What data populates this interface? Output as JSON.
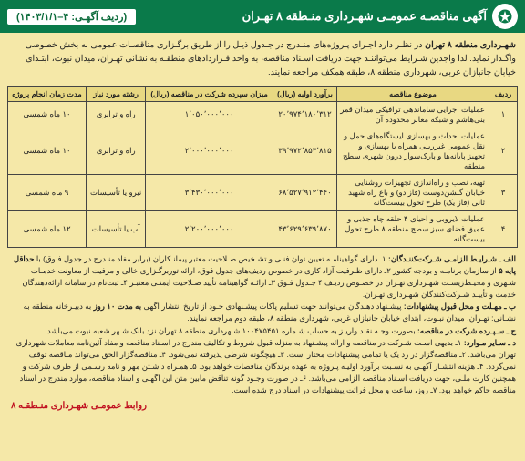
{
  "header": {
    "title": "آگهی مناقصـه عمومـی شهـرداری منـطقه ۸ تهـران",
    "ref": "(ردیف آگهـی: ۴–۱۴۰۳/۱/۱)",
    "logo_label": "شهرداری"
  },
  "intro": {
    "lead": "شهـرداری منطقه ۸ تهران",
    "body": " در نظـر دارد اجـرای پـروژه‌های منـدرج در جـدول ذیـل را از طریق برگـزاری مناقصـات عمومی به بخش خصوصی واگـذار نماید. لذا واجدین شـرایط می‌تواننـد جهت دریافت اسـناد مناقصه، به واحد قـراردادهای منطقـه به نشانی تهـران، میدان نبوت، ابتـدای خیابان جانبازان غربی، شهرداری منطقه ۸، طبقه همکف مراجعه نمایند."
  },
  "table": {
    "columns": [
      "ردیف",
      "موضوع مناقصه",
      "برآورد اولیه (ریال)",
      "میزان سپرده شرکت در مناقصه (ریال)",
      "رشته مورد نیاز",
      "مدت زمان انجام پروژه"
    ],
    "rows": [
      {
        "n": "۱",
        "subject": "عملیات اجرایی ساماندهی ترافیکی میدان قمر بنی‌هاشم و شبکه معابر محدوده آن",
        "estimate": "۲۰٬۹۷۴٬۱۸۰٬۳۱۲",
        "deposit": "۱٬۰۵۰٬۰۰۰٬۰۰۰",
        "field": "راه و ترابری",
        "duration": "۱۰ ماه شمسی"
      },
      {
        "n": "۲",
        "subject": "عملیات احداث و بهسازی ایستگاه‌های حمل و نقل عمومی غیرریلی همراه با بهسازی و تجهیز پایانه‌ها و پارک‌سوار درون شهری سطح منطقه",
        "estimate": "۳۹٬۹۷۲٬۸۵۳٬۸۱۵",
        "deposit": "۲٬۰۰۰٬۰۰۰٬۰۰۰",
        "field": "راه و ترابری",
        "duration": "۱۰ ماه شمسی"
      },
      {
        "n": "۳",
        "subject": "تهیه، نصب و راه‌اندازی تجهیزات روشنایی خیابان گلشن‌دوست (فاز دو) و باغ راه شهید ثانی (فاز یک) طرح تحول بیست‌گانه",
        "estimate": "۶۸٬۵۲۷٬۹۱۲٬۴۴۰",
        "deposit": "۳٬۴۳۰٬۰۰۰٬۰۰۰",
        "field": "نیرو یا تأسیسات",
        "duration": "۹ ماه شمسی"
      },
      {
        "n": "۴",
        "subject": "عملیات لایروبی و احیای ۴ حلقه چاه جذبی و عمیق فضای سبز سطح منطقه ۸ طرح تحول بیست‌گانه",
        "estimate": "۴۳٬۶۲۹٬۶۳۹٬۸۷۰",
        "deposit": "۲٬۲۰۰٬۰۰۰٬۰۰۰",
        "field": "آب یا تأسیسات",
        "duration": "۱۲ ماه شمسی"
      }
    ]
  },
  "notes": {
    "a_title": "الف ـ شـرایـط الزامـی شـرکت‌کننـدگان:",
    "a_body": " ۱ـ دارای گواهینامـه تعیین توان فنـی و تشـخیص صـلاحیت معتبر پیمانـکاران (برابر مفاد منـدرج در جدول فـوق) با ",
    "a_rank": "حداقل پایه ۵",
    "a_body2": " از سازمان برنامـه و بودجه کشور ۲ـ دارای ظـرفیت آزاد کاری در خصوص ردیف‌های جدول فوق، ارائه توربرگـزاری خالی و مرفیت از معاونت خدمـات شـهری و محیـط‌زیسـت شهـرداری تهـران در خصـوص ردیـف ۴ جـدول فـوق ۳ـ ارائـه گواهینامه تأیید صـلاحیت ایمنـی معتبـر ۴ـ ثبت‌نام در سامانه ارائه‌دهندگان خدمت و تأییـد شـرکت‌کنندگان شهـرداری تهـران.",
    "b_title": "ب ـ مهـلت و محل قبول پیشنهادات:",
    "b_body": " پیشـنهاد دهندگان می‌توانند جهت تسلیم پاکات پیشـنهادی خـود از تاریخ انتشار آگهی ",
    "b_deadline": "به مدت ۱۰ روز",
    "b_body2": " به دبیـرخانه منطقه به نشـانی: تهـران، میدان نبـوت، ابتدای خیابان جانبازان غربی، شهرداری منطقه ۸، طبقه دوم مراجعه نمایند.",
    "c_title": "ج ـ سـپـرده شرکت در مناقصه:",
    "c_body": " بصورت وجـه نقـد واریـز به حساب شـماره ۱۰۰۴۷۵۴۵۱ شـهرداری منطقه ۸ تهران نزد بانک شـهر شعبه نبوت می‌باشد.",
    "d_title": "د ـ سـایر مـوارد:",
    "d_body": " ۱ـ بدیهی اسـت شـرکت در مناقصه و ارائه پیشـنهاد به منزله قبول شروط و تکالیف مندرج در اسـناد مناقصه و مفاد آئین‌نامه معاملات شهرداری تهران می‌باشد. ۲ـ مناقصه‌گزار در رد یک یا تمامی پیشنهادات مختار است. ۳ـ هیچگونه شرطی پذیرفته نمی‌شود. ۴ـ مناقصه‌گزار الحق می‌تواند مناقصه توقف نمی‌گردد. ۴ـ هزینه انتشـار آگهـی به نسـبت برآورد اولیـه پـروژه به عهده برندگان مناقصات خواهد بود. ۵ـ همـراه داشـتن مهر و نامه رسـمی از طرف شرکت و همچنین کارت ملـی، جهت دریافت اسـناد مناقصه الزامی می‌باشد. ۶ـ در صورت وجـود گونه تناقض مابین متن این آگهـی و اسناد مناقصه، موارد مندرج در اسناد مناقصه حاکم خواهد بود. ۷ـ روز، ساعت و محل قرائت پیشنهادات در اسناد درج شده است."
  },
  "footer": "روابط عمومـی شهـرداری منـطقـه ۸",
  "styling": {
    "header_bg": "#0a7a4a",
    "body_bg": "#f5e8a8",
    "th_bg": "#e8d882",
    "footer_color": "#c01020",
    "border_color": "#444"
  }
}
